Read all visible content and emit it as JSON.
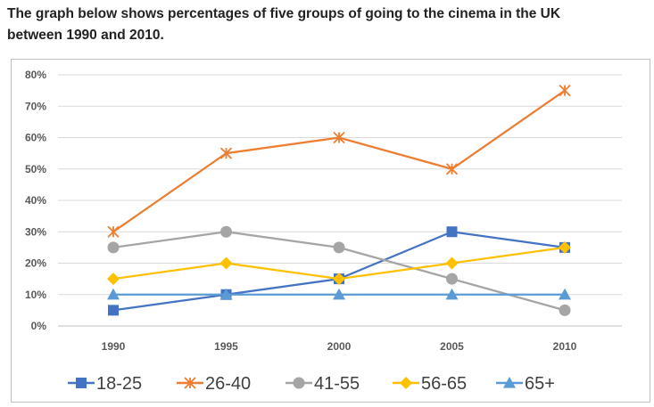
{
  "prompt": {
    "line1": "The graph below shows percentages of five groups of going to the cinema in the UK",
    "line2": "between 1990 and 2010."
  },
  "chart_data": {
    "type": "line",
    "title": "",
    "xlabel": "",
    "ylabel": "",
    "categories": [
      "1990",
      "1995",
      "2000",
      "2005",
      "2010"
    ],
    "y_ticks": [
      "0%",
      "10%",
      "20%",
      "30%",
      "40%",
      "50%",
      "60%",
      "70%",
      "80%"
    ],
    "ylim": [
      0,
      80
    ],
    "grid": true,
    "legend_position": "bottom",
    "series": [
      {
        "name": "18-25",
        "values": [
          5,
          10,
          15,
          30,
          25
        ],
        "color": "#4472c4",
        "marker": "square"
      },
      {
        "name": "26-40",
        "values": [
          30,
          55,
          60,
          50,
          75
        ],
        "color": "#ed7d31",
        "marker": "star"
      },
      {
        "name": "41-55",
        "values": [
          25,
          30,
          25,
          15,
          5
        ],
        "color": "#a5a5a5",
        "marker": "circle"
      },
      {
        "name": "56-65",
        "values": [
          15,
          20,
          15,
          20,
          25
        ],
        "color": "#ffc000",
        "marker": "diamond"
      },
      {
        "name": "65+",
        "values": [
          10,
          10,
          10,
          10,
          10
        ],
        "color": "#5b9bd5",
        "marker": "triangle"
      }
    ]
  }
}
